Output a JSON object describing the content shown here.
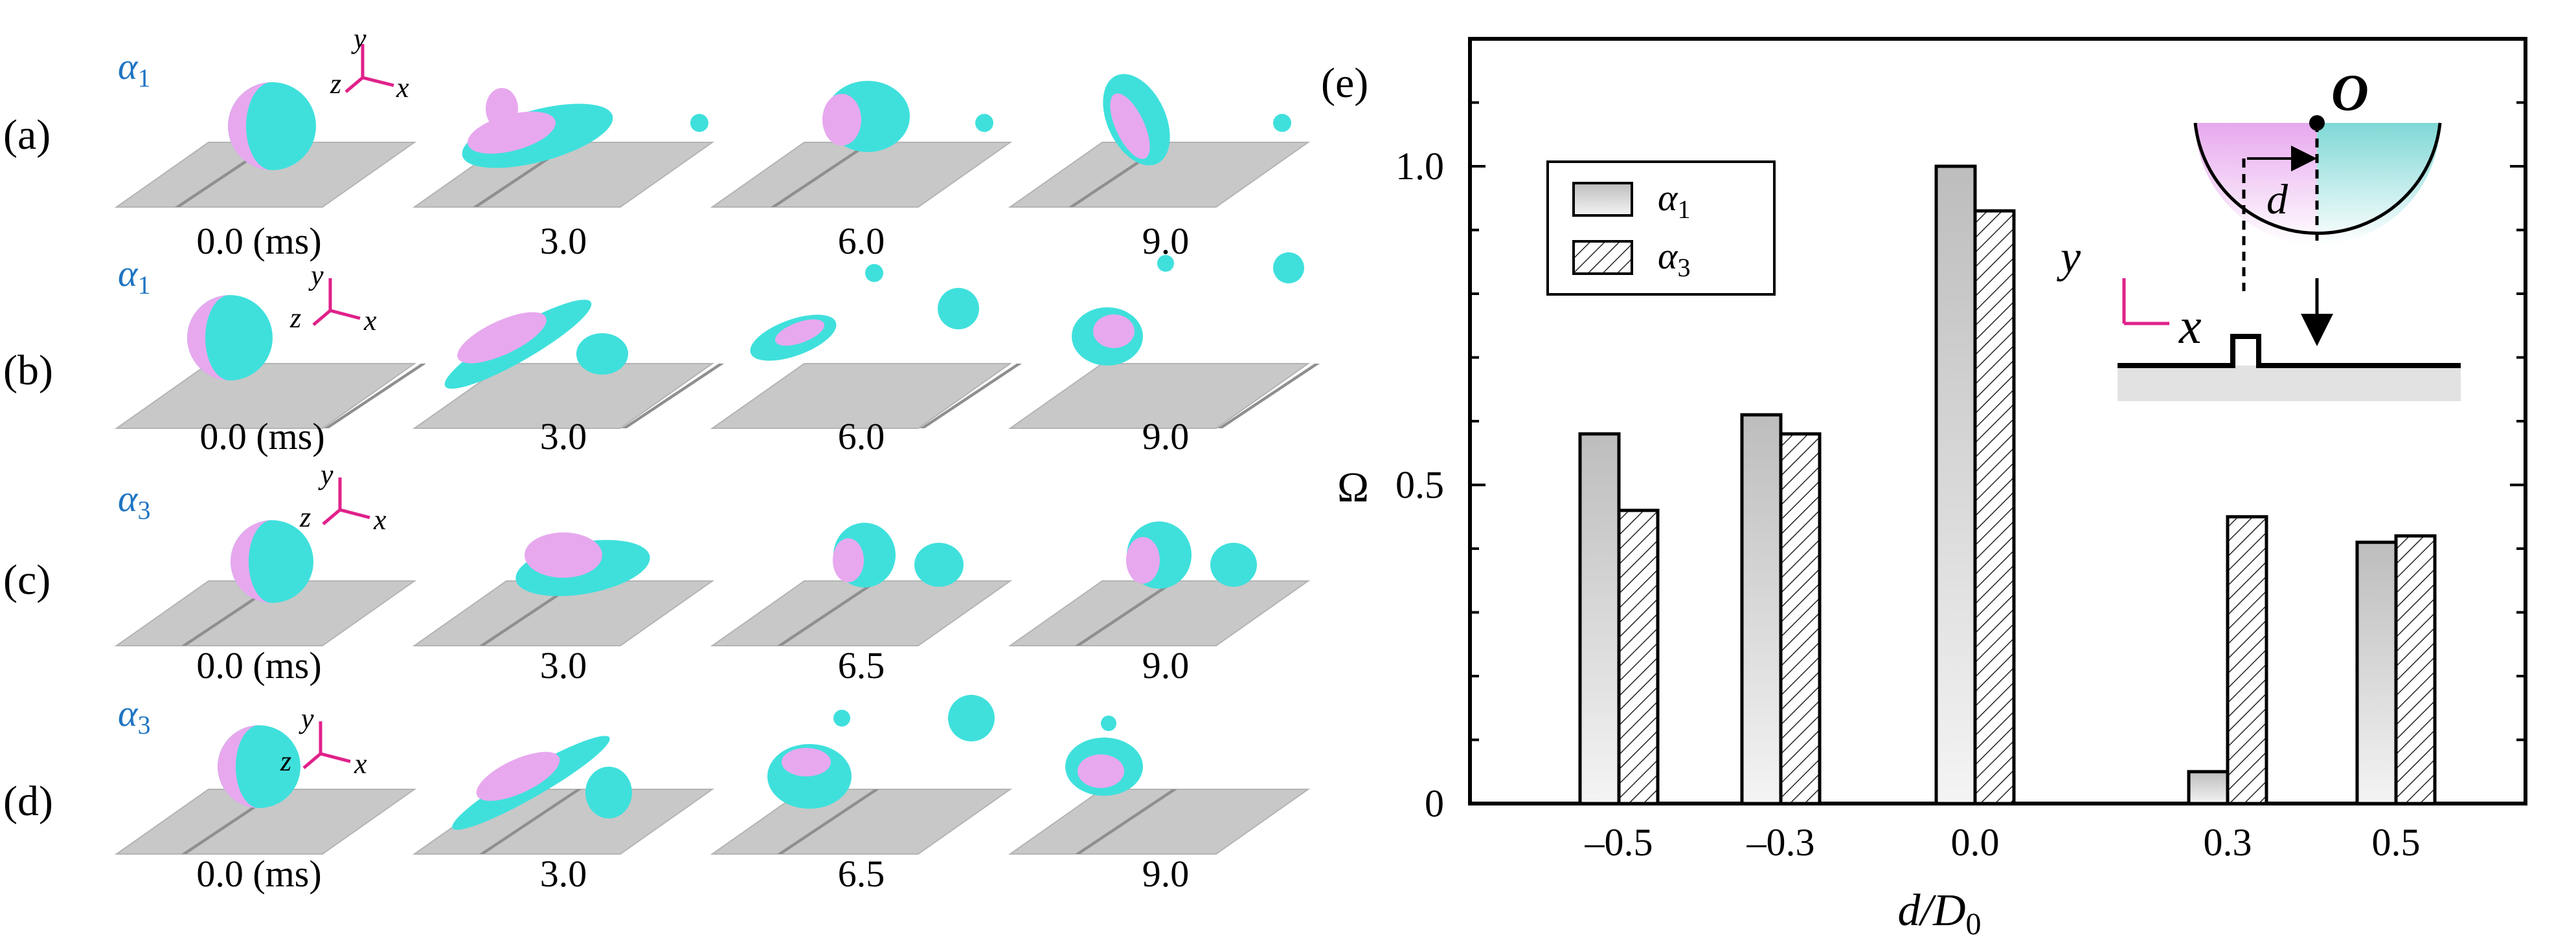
{
  "rows": [
    {
      "tag": "(a)",
      "alpha_sym": "α",
      "alpha_sub": "1",
      "times": [
        "0.0 (ms)",
        "3.0",
        "6.0",
        "9.0"
      ]
    },
    {
      "tag": "(b)",
      "alpha_sym": "α",
      "alpha_sub": "1",
      "times": [
        "0.0 (ms)",
        "3.0",
        "6.0",
        "9.0"
      ]
    },
    {
      "tag": "(c)",
      "alpha_sym": "α",
      "alpha_sub": "3",
      "times": [
        "0.0 (ms)",
        "3.0",
        "6.5",
        "9.0"
      ]
    },
    {
      "tag": "(d)",
      "alpha_sym": "α",
      "alpha_sub": "3",
      "times": [
        "0.0 (ms)",
        "3.0",
        "6.5",
        "9.0"
      ]
    }
  ],
  "axes_triad": {
    "x": "x",
    "y": "y",
    "z": "z"
  },
  "colors": {
    "pink": "#e7a8ee",
    "cyan": "#3fe0dc",
    "plate": "#c8c8c8",
    "plate_edge": "#b0b0b0",
    "rib": "#8f8f8f",
    "axis_magenta": "#e0218a",
    "alpha_label": "#1f74c2",
    "bar_gray": "#bdbdbd"
  },
  "inset": {
    "origin_label": "O",
    "d_label": "d",
    "y_label": "y",
    "x_label": "x"
  },
  "chart_data": {
    "type": "bar",
    "panel_label": "(e)",
    "categories": [
      "–0.5",
      "–0.3",
      "0.0",
      "0.3",
      "0.5"
    ],
    "series": [
      {
        "name_sym": "α",
        "name_sub": "1",
        "name": "α1",
        "values": [
          0.58,
          0.61,
          1.0,
          0.05,
          0.41
        ],
        "style": "gray gradient"
      },
      {
        "name_sym": "α",
        "name_sub": "3",
        "name": "α3",
        "values": [
          0.46,
          0.58,
          0.93,
          0.45,
          0.42
        ],
        "style": "hatched"
      }
    ],
    "ylabel": "Ω",
    "xlabel_main": "d/D",
    "xlabel_sub": "0",
    "ylim": [
      0,
      1.2
    ],
    "yticks": [
      "0",
      "0.5",
      "1.0"
    ],
    "ytick_values": [
      0,
      0.5,
      1.0
    ],
    "legend_position": "upper-left",
    "grid": false
  }
}
